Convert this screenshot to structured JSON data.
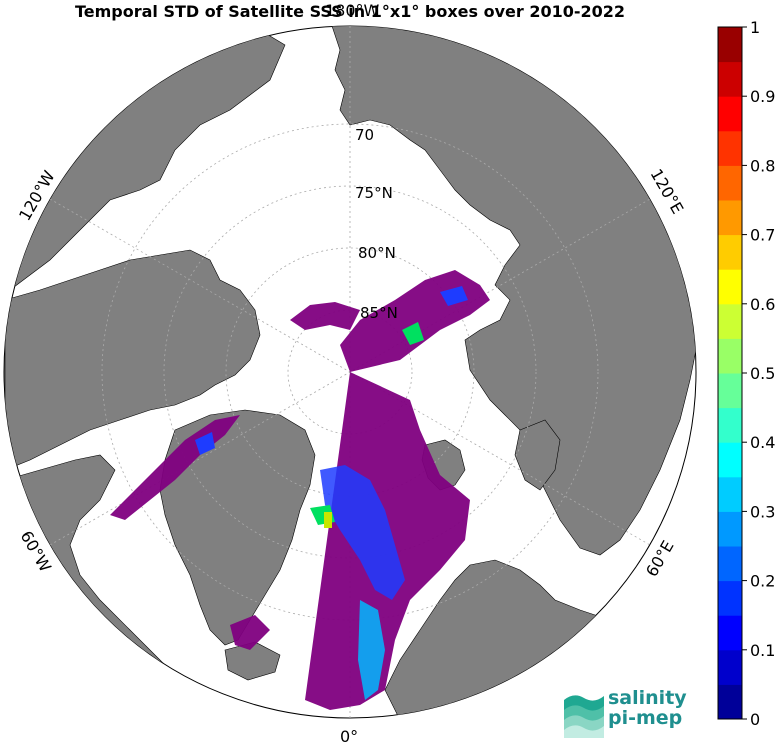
{
  "title": "Temporal STD of Satellite SSS in 1°x1° boxes over 2010-2022",
  "map": {
    "projection": "north-polar-stereographic",
    "lat_labels": [
      "70",
      "75°N",
      "80°N",
      "85°N"
    ],
    "lon_labels": {
      "top": "180°W",
      "left_upper": "120°W",
      "left_lower": "60°W",
      "bottom": "0°",
      "right_lower": "60°E",
      "right_upper": "120°E"
    },
    "colors": {
      "ocean": "#ffffff",
      "land": "#808080",
      "coast": "#000000",
      "grid": "#aaaaaa",
      "dominant_data": "#800080"
    }
  },
  "colorbar": {
    "min": 0,
    "max": 1,
    "levels": 20,
    "ticks": [
      "0",
      "0.1",
      "0.2",
      "0.3",
      "0.4",
      "0.5",
      "0.6",
      "0.7",
      "0.8",
      "0.9",
      "1"
    ],
    "colormap": "jet"
  },
  "logo": {
    "line1": "salinity",
    "line2": "pi-mep"
  }
}
